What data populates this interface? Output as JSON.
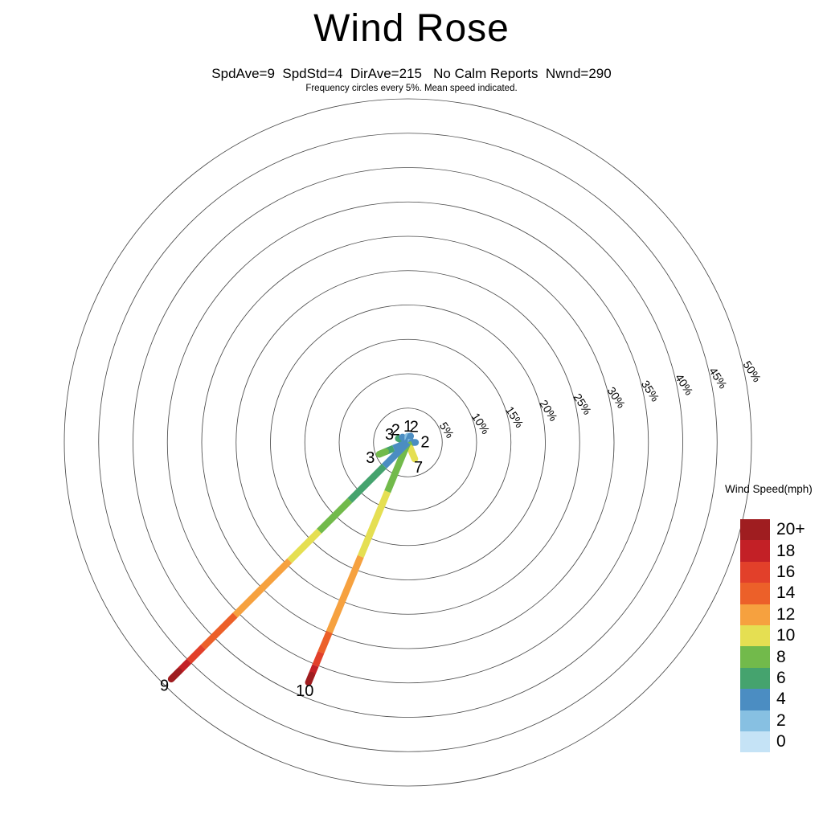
{
  "header": {
    "title": "Wind Rose",
    "subtitle": "SpdAve=9  SpdStd=4  DirAve=215   No Calm Reports  Nwnd=290",
    "note": "Frequency circles every 5%. Mean speed indicated."
  },
  "chart_data": {
    "type": "windrose",
    "title": "Wind Rose",
    "stats": {
      "SpdAve": 9,
      "SpdStd": 4,
      "DirAve": 215,
      "calm": "No Calm Reports",
      "Nwnd": 290
    },
    "ring_step_pct": 5,
    "max_ring_pct": 50,
    "frequency_rings_pct": [
      5,
      10,
      15,
      20,
      25,
      30,
      35,
      40,
      45,
      50
    ],
    "ring_labels": [
      "5%",
      "10%",
      "15%",
      "20%",
      "25%",
      "30%",
      "35%",
      "40%",
      "45%",
      "50%"
    ],
    "legend": {
      "title": "Wind Speed(mph)",
      "entries": [
        {
          "label": "20+",
          "color": "#9f1d20"
        },
        {
          "label": "18",
          "color": "#c32026"
        },
        {
          "label": "16",
          "color": "#e2402a"
        },
        {
          "label": "14",
          "color": "#ec6029"
        },
        {
          "label": "12",
          "color": "#f6a13f"
        },
        {
          "label": "10",
          "color": "#e5df52"
        },
        {
          "label": "8",
          "color": "#72ba4b"
        },
        {
          "label": "6",
          "color": "#45a36e"
        },
        {
          "label": "4",
          "color": "#4b8dc2"
        },
        {
          "label": "2",
          "color": "#87c0e2"
        },
        {
          "label": "0",
          "color": "#c5e3f6"
        }
      ]
    },
    "spokes": [
      {
        "direction": "WNW",
        "direction_deg": 292.5,
        "frequency_pct": 1.5,
        "mean_speed": "3",
        "segments": [
          {
            "bin": "4",
            "color": "#4b8dc2",
            "end_frac": 0.55
          },
          {
            "bin": "6",
            "color": "#45a36e",
            "end_frac": 1.0
          }
        ]
      },
      {
        "direction": "NW",
        "direction_deg": 315,
        "frequency_pct": 1.1,
        "mean_speed": "2",
        "segments": [
          {
            "bin": "2",
            "color": "#87c0e2",
            "end_frac": 0.45
          },
          {
            "bin": "4",
            "color": "#4b8dc2",
            "end_frac": 1.0
          }
        ]
      },
      {
        "direction": "N",
        "direction_deg": 0,
        "frequency_pct": 0.9,
        "mean_speed": "1",
        "segments": [
          {
            "bin": "2",
            "color": "#87c0e2",
            "end_frac": 1.0
          }
        ]
      },
      {
        "direction": "NNE",
        "direction_deg": 22.5,
        "frequency_pct": 1.0,
        "mean_speed": "2",
        "segments": [
          {
            "bin": "4",
            "color": "#4b8dc2",
            "end_frac": 1.0
          }
        ]
      },
      {
        "direction": "E",
        "direction_deg": 90,
        "frequency_pct": 1.1,
        "mean_speed": "2",
        "segments": [
          {
            "bin": "2",
            "color": "#87c0e2",
            "end_frac": 0.5
          },
          {
            "bin": "4",
            "color": "#4b8dc2",
            "end_frac": 1.0
          }
        ]
      },
      {
        "direction": "SSE",
        "direction_deg": 157.5,
        "frequency_pct": 2.6,
        "mean_speed": "7",
        "segments": [
          {
            "bin": "8",
            "color": "#72ba4b",
            "end_frac": 0.35
          },
          {
            "bin": "10",
            "color": "#e5df52",
            "end_frac": 1.0
          }
        ]
      },
      {
        "direction": "WSW",
        "direction_deg": 247.5,
        "frequency_pct": 4.5,
        "mean_speed": "3",
        "segments": [
          {
            "bin": "4",
            "color": "#4b8dc2",
            "end_frac": 0.5
          },
          {
            "bin": "6",
            "color": "#45a36e",
            "end_frac": 0.78
          },
          {
            "bin": "8",
            "color": "#72ba4b",
            "end_frac": 1.0
          }
        ]
      },
      {
        "direction": "SSW",
        "direction_deg": 202.5,
        "frequency_pct": 37.8,
        "mean_speed": "10",
        "segments": [
          {
            "bin": "8",
            "color": "#72ba4b",
            "end_frac": 0.205
          },
          {
            "bin": "10",
            "color": "#e5df52",
            "end_frac": 0.475
          },
          {
            "bin": "12",
            "color": "#f6a13f",
            "end_frac": 0.79
          },
          {
            "bin": "14",
            "color": "#ec6029",
            "end_frac": 0.875
          },
          {
            "bin": "16",
            "color": "#e2402a",
            "end_frac": 0.93
          },
          {
            "bin": "18",
            "color": "#c32026",
            "end_frac": 0.97
          },
          {
            "bin": "20+",
            "color": "#9f1d20",
            "end_frac": 1.0
          }
        ]
      },
      {
        "direction": "SW",
        "direction_deg": 225,
        "frequency_pct": 48.7,
        "mean_speed": "9",
        "segments": [
          {
            "bin": "4",
            "color": "#4b8dc2",
            "end_frac": 0.1
          },
          {
            "bin": "6",
            "color": "#45a36e",
            "end_frac": 0.245
          },
          {
            "bin": "8",
            "color": "#72ba4b",
            "end_frac": 0.375
          },
          {
            "bin": "10",
            "color": "#e5df52",
            "end_frac": 0.5
          },
          {
            "bin": "12",
            "color": "#f6a13f",
            "end_frac": 0.73
          },
          {
            "bin": "14",
            "color": "#ec6029",
            "end_frac": 0.865
          },
          {
            "bin": "16",
            "color": "#e2402a",
            "end_frac": 0.925
          },
          {
            "bin": "18",
            "color": "#c32026",
            "end_frac": 0.968
          },
          {
            "bin": "20+",
            "color": "#9f1d20",
            "end_frac": 1.0
          }
        ]
      }
    ],
    "layout_hints": {
      "ring_label_azimuth": "upper-right diagonal",
      "grid": "concentric circles every 5%",
      "legend_position": "right"
    }
  }
}
